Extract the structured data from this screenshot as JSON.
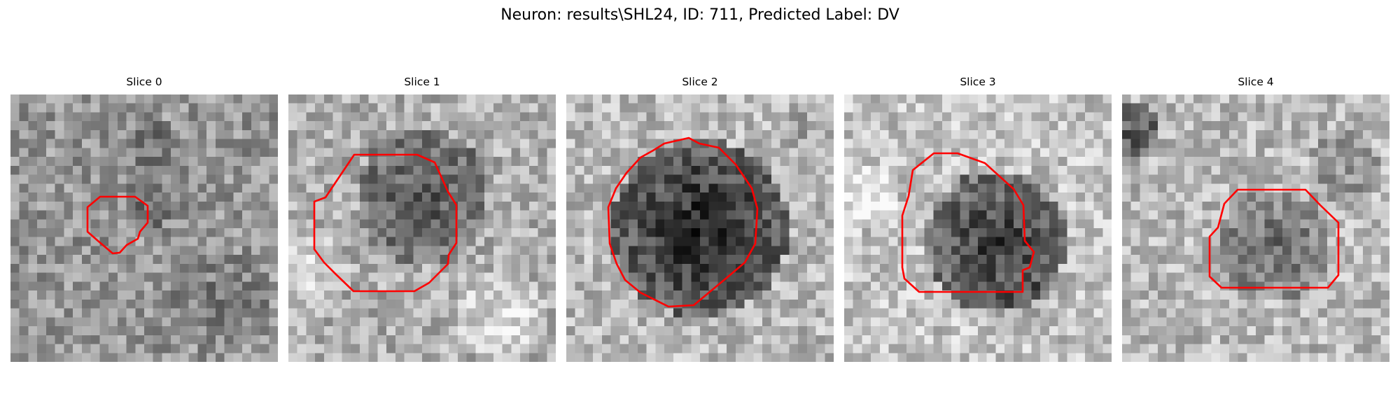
{
  "figure": {
    "title": "Neuron: results\\SHL24, ID: 711, Predicted Label: DV",
    "outline_color": "#ff0000",
    "colormap": "gray"
  },
  "slices": [
    {
      "title": "Slice 0"
    },
    {
      "title": "Slice 1"
    },
    {
      "title": "Slice 2"
    },
    {
      "title": "Slice 3"
    },
    {
      "title": "Slice 4"
    }
  ]
}
